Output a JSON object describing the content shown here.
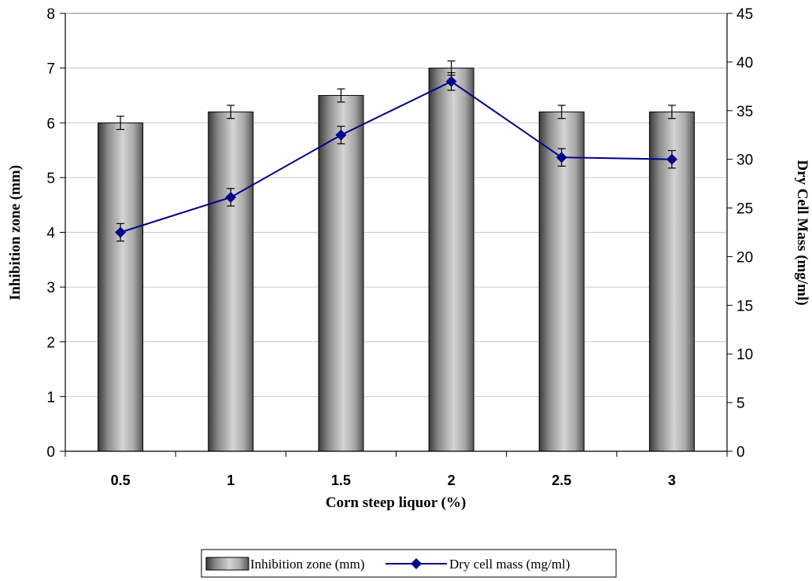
{
  "chart_data": {
    "type": "bar",
    "categories": [
      "0.5",
      "1",
      "1.5",
      "2",
      "2.5",
      "3"
    ],
    "xlabel": "Corn steep liquor (%)",
    "ylabel": "Inhibition zone (mm)",
    "y2label": "Dry Cell Mass (mg/ml)",
    "ylim": [
      0,
      8
    ],
    "y2lim": [
      0,
      45
    ],
    "yticks": [
      "0",
      "1",
      "2",
      "3",
      "4",
      "5",
      "6",
      "7",
      "8"
    ],
    "y2ticks": [
      "0",
      "5",
      "10",
      "15",
      "20",
      "25",
      "30",
      "35",
      "40",
      "45"
    ],
    "grid": true,
    "legend_position": "bottom",
    "series": [
      {
        "name": "Inhibition zone (mm)",
        "kind": "bar",
        "axis": "left",
        "values": [
          6.0,
          6.2,
          6.5,
          7.0,
          6.2,
          6.2
        ],
        "errors": [
          0.12,
          0.12,
          0.12,
          0.13,
          0.12,
          0.12
        ],
        "color": "#a6a6a6"
      },
      {
        "name": "Dry cell mass (mg/ml)",
        "kind": "line",
        "axis": "right",
        "marker": "diamond",
        "values": [
          22.5,
          26.1,
          32.5,
          38.0,
          30.2,
          30.0
        ],
        "errors": [
          0.9,
          0.9,
          0.9,
          0.9,
          0.9,
          0.9
        ],
        "color": "#00008b"
      }
    ]
  }
}
